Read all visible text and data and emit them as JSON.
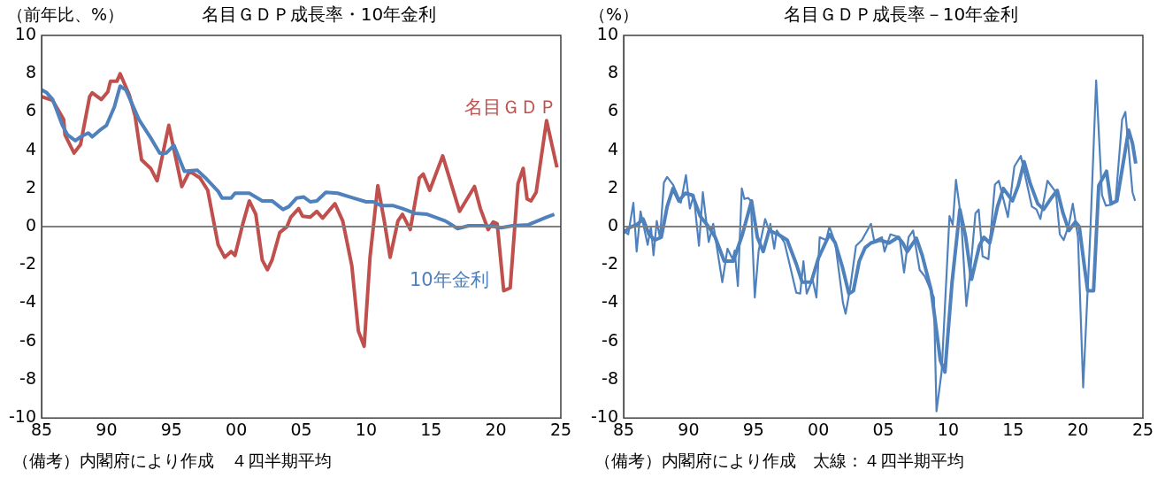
{
  "chart_data": [
    {
      "type": "line",
      "title": "名目ＧＤＰ成長率・10年金利",
      "ylabel": "（前年比、%）",
      "xlim": [
        1985,
        2025
      ],
      "xticks": [
        {
          "value": 1985,
          "label": "85"
        },
        {
          "value": 1990,
          "label": "90"
        },
        {
          "value": 1995,
          "label": "95"
        },
        {
          "value": 2000,
          "label": "00"
        },
        {
          "value": 2005,
          "label": "05"
        },
        {
          "value": 2010,
          "label": "10"
        },
        {
          "value": 2015,
          "label": "15"
        },
        {
          "value": 2020,
          "label": "20"
        },
        {
          "value": 2025,
          "label": "25"
        }
      ],
      "ylim": [
        -10,
        10
      ],
      "yticks": [
        -10,
        -8,
        -6,
        -4,
        -2,
        0,
        2,
        4,
        6,
        8,
        10
      ],
      "grid": false,
      "legend": false,
      "ref_lines": [
        {
          "axis": "y",
          "value": 0,
          "color": "#808080"
        }
      ],
      "annotations": [
        "（備考）内閣府により作成　４四半期平均"
      ],
      "series": [
        {
          "name": "名目ＧＤＰ",
          "color": "#c0504d",
          "x": [
            1985.0,
            1985.85,
            1986.7,
            1986.8,
            1987.5,
            1988.0,
            1988.7,
            1988.9,
            1989.6,
            1990.1,
            1990.3,
            1990.8,
            1991.05,
            1991.75,
            1992.2,
            1992.7,
            1993.4,
            1993.9,
            1994.8,
            1995.8,
            1996.4,
            1997.2,
            1997.8,
            1998.6,
            1999.1,
            1999.6,
            1999.9,
            2000.5,
            2001.0,
            2001.5,
            2002.0,
            2002.4,
            2002.75,
            2003.35,
            2003.9,
            2004.2,
            2004.8,
            2005.1,
            2005.7,
            2006.2,
            2006.65,
            2007.6,
            2008.2,
            2008.9,
            2009.4,
            2009.85,
            2010.3,
            2010.9,
            2011.4,
            2011.85,
            2012.45,
            2012.8,
            2013.4,
            2014.1,
            2014.4,
            2014.9,
            2015.9,
            2017.2,
            2018.35,
            2018.8,
            2019.4,
            2019.8,
            2020.1,
            2020.6,
            2021.1,
            2021.7,
            2022.1,
            2022.4,
            2022.7,
            2023.1,
            2023.9,
            2024.7
          ],
          "values": [
            6.8,
            6.6,
            5.6,
            4.8,
            3.85,
            4.3,
            6.8,
            7.0,
            6.65,
            7.05,
            7.6,
            7.6,
            8.0,
            6.9,
            5.8,
            3.5,
            3.05,
            2.4,
            5.3,
            2.1,
            2.9,
            2.55,
            1.9,
            -0.95,
            -1.6,
            -1.3,
            -1.5,
            0.15,
            1.35,
            0.65,
            -1.75,
            -2.25,
            -1.75,
            -0.3,
            0.0,
            0.5,
            0.95,
            0.55,
            0.5,
            0.8,
            0.45,
            1.2,
            0.3,
            -2.05,
            -5.45,
            -6.25,
            -1.6,
            2.15,
            0.3,
            -1.6,
            0.3,
            0.65,
            -0.15,
            2.55,
            2.75,
            1.9,
            3.7,
            0.8,
            2.1,
            0.95,
            -0.15,
            0.25,
            0.15,
            -3.35,
            -3.2,
            2.25,
            3.05,
            1.45,
            1.35,
            1.8,
            5.55,
            3.1
          ]
        },
        {
          "name": "10年金利",
          "color": "#4f81bd",
          "x": [
            1985.0,
            1985.4,
            1985.85,
            1986.6,
            1987.0,
            1987.6,
            1988.0,
            1988.6,
            1988.9,
            1989.5,
            1990.0,
            1990.6,
            1991.05,
            1991.5,
            1992.5,
            1993.4,
            1994.1,
            1994.6,
            1995.2,
            1996.0,
            1997.0,
            1997.7,
            1998.6,
            1998.9,
            1999.6,
            1999.9,
            2001.0,
            2002.0,
            2002.75,
            2003.6,
            2004.05,
            2004.65,
            2005.2,
            2005.7,
            2006.2,
            2006.9,
            2007.8,
            2009.0,
            2010.0,
            2010.55,
            2011.15,
            2012.1,
            2012.8,
            2013.75,
            2014.7,
            2015.5,
            2016.1,
            2017.05,
            2017.9,
            2018.95,
            2019.9,
            2020.4,
            2021.3,
            2022.5,
            2023.2,
            2023.9,
            2024.5
          ],
          "values": [
            7.15,
            7.0,
            6.65,
            5.3,
            4.8,
            4.5,
            4.7,
            4.9,
            4.7,
            5.05,
            5.3,
            6.25,
            7.35,
            7.15,
            5.6,
            4.65,
            3.85,
            3.85,
            4.25,
            2.9,
            2.95,
            2.5,
            1.85,
            1.5,
            1.5,
            1.75,
            1.75,
            1.35,
            1.35,
            0.9,
            1.05,
            1.5,
            1.55,
            1.3,
            1.35,
            1.8,
            1.75,
            1.5,
            1.3,
            1.3,
            1.1,
            1.1,
            0.95,
            0.7,
            0.65,
            0.45,
            0.3,
            -0.1,
            0.05,
            0.05,
            0.0,
            -0.05,
            0.05,
            0.1,
            0.3,
            0.5,
            0.65
          ]
        }
      ]
    },
    {
      "type": "line",
      "title": "名目ＧＤＰ成長率－10年金利",
      "ylabel": "（%）",
      "xlim": [
        1985,
        2025
      ],
      "xticks": [
        {
          "value": 1985,
          "label": "85"
        },
        {
          "value": 1990,
          "label": "90"
        },
        {
          "value": 1995,
          "label": "95"
        },
        {
          "value": 2000,
          "label": "00"
        },
        {
          "value": 2005,
          "label": "05"
        },
        {
          "value": 2010,
          "label": "10"
        },
        {
          "value": 2015,
          "label": "15"
        },
        {
          "value": 2020,
          "label": "20"
        },
        {
          "value": 2025,
          "label": "25"
        }
      ],
      "ylim": [
        -10,
        10
      ],
      "yticks": [
        -10,
        -8,
        -6,
        -4,
        -2,
        0,
        2,
        4,
        6,
        8,
        10
      ],
      "grid": false,
      "legend": false,
      "ref_lines": [
        {
          "axis": "y",
          "value": 0,
          "color": "#808080"
        }
      ],
      "annotations": [
        "（備考）内閣府により作成　太線：４四半期平均"
      ],
      "series": [
        {
          "color": "#4f81bd",
          "x": [
            1985.0,
            1985.35,
            1985.75,
            1986.0,
            1986.3,
            1986.85,
            1987.1,
            1987.3,
            1987.55,
            1987.8,
            1988.1,
            1988.35,
            1988.8,
            1989.4,
            1989.8,
            1990.1,
            1990.4,
            1990.8,
            1991.1,
            1991.55,
            1991.9,
            1992.6,
            1993.0,
            1993.4,
            1993.55,
            1993.8,
            1994.1,
            1994.3,
            1994.6,
            1994.8,
            1995.1,
            1995.4,
            1995.9,
            1996.2,
            1996.3,
            1996.6,
            1996.8,
            1997.4,
            1998.3,
            1998.6,
            1998.85,
            1999.1,
            1999.55,
            1999.85,
            2000.1,
            2000.6,
            2000.85,
            2001.3,
            2001.9,
            2002.1,
            2002.45,
            2002.9,
            2003.35,
            2004.05,
            2004.3,
            2004.9,
            2005.1,
            2005.55,
            2006.25,
            2006.6,
            2006.95,
            2007.3,
            2007.8,
            2008.2,
            2008.9,
            2009.1,
            2009.5,
            2010.1,
            2010.35,
            2010.6,
            2011.0,
            2011.4,
            2011.7,
            2012.1,
            2012.35,
            2012.65,
            2013.1,
            2013.6,
            2013.9,
            2014.6,
            2015.1,
            2015.6,
            2016.45,
            2016.8,
            2017.1,
            2017.65,
            2018.3,
            2018.6,
            2018.9,
            2019.3,
            2019.6,
            2020.0,
            2020.4,
            2020.95,
            2021.4,
            2021.85,
            2022.15,
            2022.55,
            2022.9,
            2023.4,
            2023.65,
            2024.2,
            2024.4
          ],
          "values": [
            -0.2,
            -0.4,
            1.25,
            -1.3,
            0.8,
            -0.95,
            0.0,
            -1.5,
            0.3,
            -0.6,
            2.3,
            2.6,
            2.2,
            1.25,
            2.7,
            0.95,
            1.65,
            -1.0,
            1.8,
            -0.8,
            0.15,
            -2.9,
            -1.15,
            -1.7,
            -1.25,
            -3.1,
            2.0,
            1.45,
            1.5,
            1.35,
            -3.7,
            -1.25,
            0.4,
            -0.2,
            0.15,
            -1.15,
            -0.2,
            -0.85,
            -3.45,
            -3.5,
            -1.8,
            -3.5,
            -2.75,
            -3.7,
            -0.55,
            -0.7,
            0.0,
            -0.85,
            -4.0,
            -4.55,
            -3.2,
            -1.0,
            -0.7,
            0.15,
            -0.75,
            -0.55,
            -1.3,
            -0.4,
            -0.55,
            -2.4,
            -0.55,
            -0.2,
            -2.25,
            -2.6,
            -3.7,
            -9.65,
            -7.55,
            0.55,
            0.1,
            2.45,
            0.4,
            -4.15,
            -2.4,
            0.7,
            0.9,
            -1.55,
            -1.7,
            2.2,
            2.4,
            0.5,
            3.15,
            3.7,
            1.05,
            0.9,
            0.4,
            2.4,
            1.8,
            -0.4,
            -0.7,
            0.1,
            1.2,
            -0.55,
            -8.4,
            -0.3,
            7.65,
            1.65,
            1.1,
            1.15,
            1.35,
            5.6,
            6.0,
            1.8,
            1.35
          ]
        },
        {
          "color": "#4f81bd",
          "x": [
            1985.0,
            1985.45,
            1986.0,
            1986.5,
            1986.95,
            1987.4,
            1987.9,
            1988.35,
            1988.8,
            1989.25,
            1989.75,
            1990.3,
            1990.9,
            1991.6,
            1992.05,
            1992.75,
            1993.45,
            1994.15,
            1994.85,
            1995.3,
            1995.75,
            1996.2,
            1996.9,
            1997.6,
            1998.3,
            1998.75,
            1999.45,
            2000.0,
            2000.85,
            2001.3,
            2001.85,
            2002.35,
            2002.7,
            2003.15,
            2003.6,
            2004.05,
            2004.75,
            2005.45,
            2006.15,
            2006.5,
            2006.85,
            2007.55,
            2008.0,
            2008.7,
            2009.4,
            2009.75,
            2010.3,
            2010.9,
            2011.35,
            2011.8,
            2012.4,
            2012.75,
            2013.2,
            2013.8,
            2014.25,
            2014.95,
            2015.4,
            2015.85,
            2016.3,
            2016.9,
            2017.35,
            2017.95,
            2018.4,
            2018.85,
            2019.3,
            2019.8,
            2020.1,
            2020.5,
            2020.75,
            2021.2,
            2021.6,
            2022.2,
            2022.55,
            2023.0,
            2023.5,
            2023.9,
            2024.2,
            2024.45
          ],
          "values": [
            -0.3,
            -0.05,
            0.1,
            0.4,
            -0.4,
            -0.7,
            -0.55,
            1.05,
            2.0,
            1.35,
            1.75,
            1.65,
            0.55,
            -0.05,
            -0.55,
            -1.8,
            -1.8,
            -0.4,
            1.35,
            -0.55,
            -1.3,
            -0.2,
            -0.4,
            -0.7,
            -1.95,
            -2.9,
            -2.9,
            -1.65,
            -0.4,
            -0.85,
            -2.1,
            -3.5,
            -3.35,
            -1.8,
            -1.1,
            -0.85,
            -0.7,
            -0.85,
            -0.55,
            -0.85,
            -1.3,
            -0.6,
            -1.5,
            -3.35,
            -7.0,
            -7.6,
            -2.9,
            0.9,
            -0.55,
            -2.75,
            -1.0,
            -0.55,
            -0.85,
            1.05,
            2.0,
            1.35,
            2.15,
            3.4,
            2.3,
            1.2,
            0.9,
            1.5,
            1.9,
            0.7,
            -0.2,
            0.25,
            0.0,
            -2.1,
            -3.35,
            -3.35,
            2.15,
            2.9,
            1.2,
            1.35,
            3.4,
            5.05,
            4.35,
            3.3
          ]
        }
      ]
    }
  ]
}
